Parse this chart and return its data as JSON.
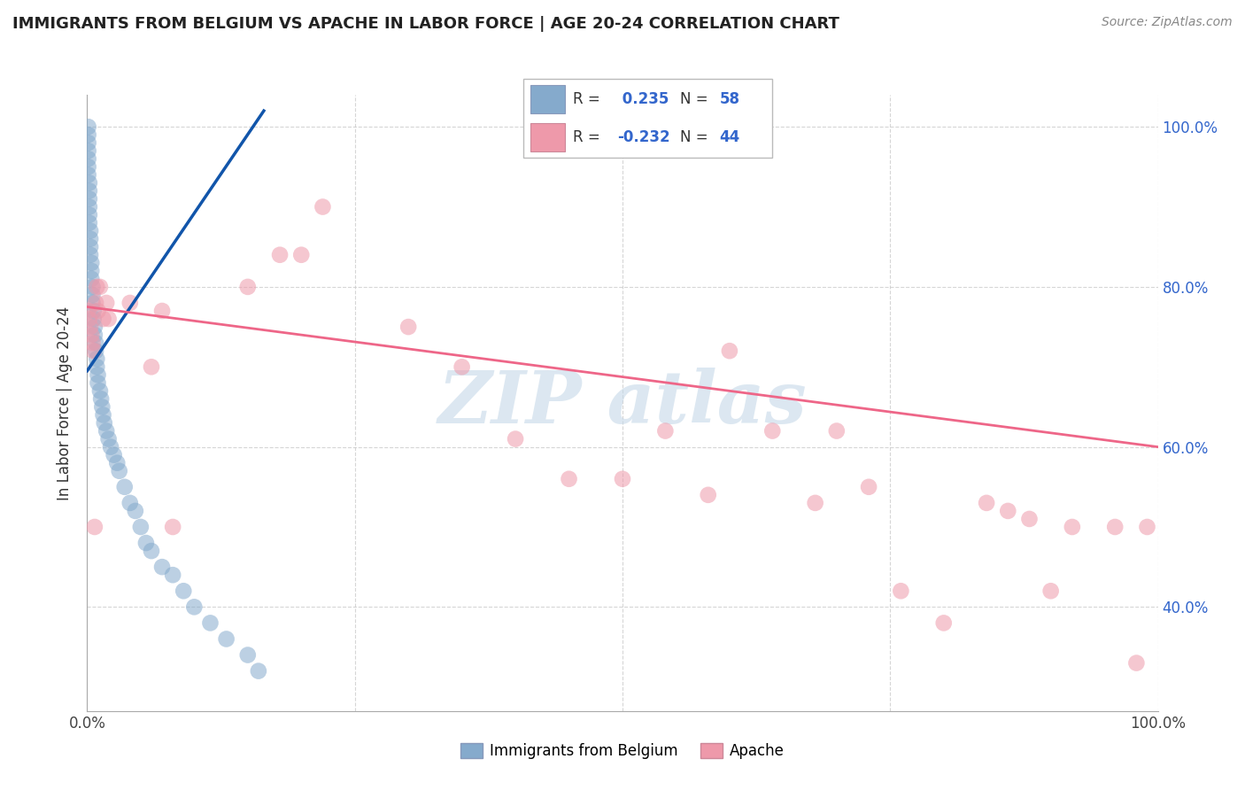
{
  "title": "IMMIGRANTS FROM BELGIUM VS APACHE IN LABOR FORCE | AGE 20-24 CORRELATION CHART",
  "source": "Source: ZipAtlas.com",
  "ylabel": "In Labor Force | Age 20-24",
  "blue_R": 0.235,
  "blue_N": 58,
  "pink_R": -0.232,
  "pink_N": 44,
  "blue_color": "#85AACC",
  "pink_color": "#EE99AA",
  "blue_line_color": "#1155AA",
  "pink_line_color": "#EE6688",
  "legend_R_color": "#3366CC",
  "watermark_color": "#C5D8E8",
  "xlim": [
    0.0,
    1.0
  ],
  "ylim": [
    0.27,
    1.04
  ],
  "yticks": [
    0.4,
    0.6,
    0.8,
    1.0
  ],
  "blue_x": [
    0.001,
    0.001,
    0.001,
    0.001,
    0.001,
    0.001,
    0.001,
    0.002,
    0.002,
    0.002,
    0.002,
    0.002,
    0.002,
    0.003,
    0.003,
    0.003,
    0.003,
    0.004,
    0.004,
    0.004,
    0.005,
    0.005,
    0.005,
    0.006,
    0.006,
    0.007,
    0.007,
    0.008,
    0.008,
    0.009,
    0.009,
    0.01,
    0.01,
    0.012,
    0.013,
    0.014,
    0.015,
    0.016,
    0.018,
    0.02,
    0.022,
    0.025,
    0.028,
    0.03,
    0.035,
    0.04,
    0.045,
    0.05,
    0.055,
    0.06,
    0.07,
    0.08,
    0.09,
    0.1,
    0.115,
    0.13,
    0.15,
    0.16
  ],
  "blue_y": [
    1.0,
    0.99,
    0.98,
    0.97,
    0.96,
    0.95,
    0.94,
    0.93,
    0.92,
    0.91,
    0.9,
    0.89,
    0.88,
    0.87,
    0.86,
    0.85,
    0.84,
    0.83,
    0.82,
    0.81,
    0.8,
    0.79,
    0.78,
    0.77,
    0.76,
    0.75,
    0.74,
    0.73,
    0.72,
    0.71,
    0.7,
    0.69,
    0.68,
    0.67,
    0.66,
    0.65,
    0.64,
    0.63,
    0.62,
    0.61,
    0.6,
    0.59,
    0.58,
    0.57,
    0.55,
    0.53,
    0.52,
    0.5,
    0.48,
    0.47,
    0.45,
    0.44,
    0.42,
    0.4,
    0.38,
    0.36,
    0.34,
    0.32
  ],
  "pink_x": [
    0.001,
    0.002,
    0.003,
    0.004,
    0.005,
    0.006,
    0.007,
    0.008,
    0.009,
    0.01,
    0.012,
    0.015,
    0.018,
    0.02,
    0.04,
    0.06,
    0.07,
    0.08,
    0.15,
    0.18,
    0.2,
    0.22,
    0.3,
    0.35,
    0.4,
    0.45,
    0.5,
    0.54,
    0.58,
    0.6,
    0.64,
    0.68,
    0.7,
    0.73,
    0.76,
    0.8,
    0.84,
    0.86,
    0.88,
    0.9,
    0.92,
    0.96,
    0.98,
    0.99
  ],
  "pink_y": [
    0.77,
    0.76,
    0.75,
    0.74,
    0.73,
    0.72,
    0.5,
    0.78,
    0.8,
    0.77,
    0.8,
    0.76,
    0.78,
    0.76,
    0.78,
    0.7,
    0.77,
    0.5,
    0.8,
    0.84,
    0.84,
    0.9,
    0.75,
    0.7,
    0.61,
    0.56,
    0.56,
    0.62,
    0.54,
    0.72,
    0.62,
    0.53,
    0.62,
    0.55,
    0.42,
    0.38,
    0.53,
    0.52,
    0.51,
    0.42,
    0.5,
    0.5,
    0.33,
    0.5
  ],
  "blue_line_x": [
    0.0,
    0.165
  ],
  "blue_line_y": [
    0.695,
    1.02
  ],
  "pink_line_x": [
    0.0,
    1.0
  ],
  "pink_line_y": [
    0.775,
    0.6
  ]
}
